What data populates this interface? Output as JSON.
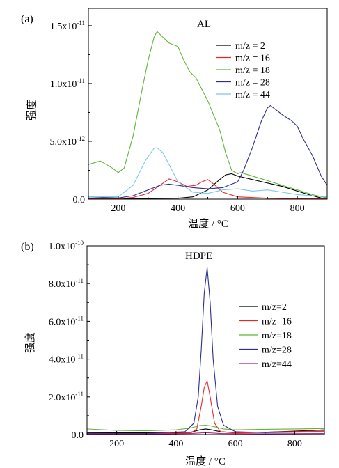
{
  "colors": {
    "black": "#000000",
    "red": "#e8262a",
    "green": "#5fb536",
    "navy": "#2b2f8f",
    "cyan": "#7cc8e8",
    "magenta": "#b0257c"
  },
  "chart_data": [
    {
      "type": "line",
      "panel_label": "(a)",
      "title": "AL",
      "xlabel": "温度 / °C",
      "ylabel": "强度",
      "xlim": [
        100,
        900
      ],
      "ylim": [
        0,
        1.65e-11
      ],
      "x_ticks": [
        200,
        400,
        600,
        800
      ],
      "x_tick_labels": [
        "200",
        "400",
        "600",
        "800"
      ],
      "y_ticks": [
        0,
        5e-12,
        1e-11,
        1.5e-11
      ],
      "y_tick_labels": [
        {
          "base": "0.0",
          "exp": ""
        },
        {
          "base": "5.0x10",
          "exp": "-12"
        },
        {
          "base": "1.0x10",
          "exp": "-11"
        },
        {
          "base": "1.5x10",
          "exp": "-11"
        }
      ],
      "legend_position": "top-right",
      "series": [
        {
          "name": "m/z = 2",
          "color_key": "black",
          "x": [
            100,
            200,
            300,
            400,
            450,
            500,
            540,
            560,
            580,
            600,
            650,
            700,
            750,
            800,
            850,
            880,
            900
          ],
          "y": [
            5e-14,
            5e-14,
            6e-14,
            8e-14,
            2e-13,
            8e-13,
            1.7e-12,
            2.1e-12,
            2.2e-12,
            2e-12,
            1.7e-12,
            1.4e-12,
            1.1e-12,
            7e-13,
            3e-13,
            1e-13,
            5e-14
          ]
        },
        {
          "name": "m/z = 16",
          "color_key": "red",
          "x": [
            100,
            200,
            250,
            300,
            340,
            370,
            400,
            430,
            460,
            480,
            500,
            520,
            550,
            600,
            700,
            800,
            900
          ],
          "y": [
            2e-14,
            3e-14,
            1.5e-13,
            5e-13,
            1.2e-12,
            1.75e-12,
            1.5e-12,
            1.1e-12,
            1.2e-12,
            1.5e-12,
            1.7e-12,
            1.3e-12,
            6e-13,
            2e-13,
            8e-14,
            5e-14,
            3e-14
          ]
        },
        {
          "name": "m/z = 18",
          "color_key": "green",
          "x": [
            100,
            140,
            180,
            200,
            220,
            250,
            280,
            300,
            310,
            320,
            330,
            350,
            370,
            400,
            420,
            440,
            460,
            500,
            540,
            560,
            580,
            600,
            610,
            650,
            700,
            750,
            800,
            850,
            900
          ],
          "y": [
            3e-12,
            3.3e-12,
            2.7e-12,
            2.3e-12,
            2.7e-12,
            5.5e-12,
            9.5e-12,
            1.2e-11,
            1.3e-11,
            1.4e-11,
            1.45e-11,
            1.4e-11,
            1.35e-11,
            1.32e-11,
            1.2e-11,
            1.1e-11,
            1.05e-11,
            8.5e-12,
            6e-12,
            4e-12,
            2.5e-12,
            2.2e-12,
            2.3e-12,
            2e-12,
            1.6e-12,
            1.2e-12,
            8e-13,
            4e-13,
            1e-13
          ]
        },
        {
          "name": "m/z = 28",
          "color_key": "navy",
          "x": [
            100,
            200,
            250,
            300,
            340,
            370,
            400,
            450,
            500,
            550,
            600,
            620,
            650,
            680,
            700,
            710,
            720,
            750,
            780,
            800,
            820,
            850,
            880,
            900
          ],
          "y": [
            2e-13,
            1e-13,
            3e-13,
            8e-13,
            1.2e-12,
            1.3e-12,
            1.2e-12,
            1e-12,
            9e-13,
            1e-12,
            1.5e-12,
            2.5e-12,
            4.5e-12,
            6.8e-12,
            7.9e-12,
            8.1e-12,
            7.9e-12,
            7.3e-12,
            6.8e-12,
            6.3e-12,
            5.2e-12,
            3.8e-12,
            2e-12,
            1.2e-12
          ]
        },
        {
          "name": "m/z = 44",
          "color_key": "cyan",
          "x": [
            100,
            200,
            250,
            290,
            320,
            330,
            350,
            380,
            400,
            450,
            500,
            550,
            600,
            650,
            700,
            750,
            800,
            850,
            900
          ],
          "y": [
            2e-13,
            2e-13,
            1.2e-12,
            3.3e-12,
            4.4e-12,
            4.45e-12,
            4e-12,
            2.5e-12,
            1.5e-12,
            6e-13,
            5e-13,
            8e-13,
            9e-13,
            7e-13,
            8e-13,
            6e-13,
            4e-13,
            3e-13,
            2e-13
          ]
        }
      ]
    },
    {
      "type": "line",
      "panel_label": "(b)",
      "title": "HDPE",
      "xlabel": "温度 / °C",
      "ylabel": "强度",
      "xlim": [
        100,
        900
      ],
      "ylim": [
        0,
        1e-10
      ],
      "x_ticks": [
        200,
        400,
        600,
        800
      ],
      "x_tick_labels": [
        "200",
        "400",
        "600",
        "800"
      ],
      "y_ticks": [
        0,
        2e-11,
        4e-11,
        6e-11,
        8e-11,
        1e-10
      ],
      "y_tick_labels": [
        {
          "base": "0.0",
          "exp": ""
        },
        {
          "base": "2.0x10",
          "exp": "-11"
        },
        {
          "base": "4.0x10",
          "exp": "-11"
        },
        {
          "base": "6.0x10",
          "exp": "-11"
        },
        {
          "base": "8.0x10",
          "exp": "-11"
        },
        {
          "base": "1.0x10",
          "exp": "-10"
        }
      ],
      "legend_position": "right",
      "series": [
        {
          "name": "m/z=2",
          "color_key": "black",
          "x": [
            100,
            300,
            450,
            480,
            500,
            520,
            550,
            600,
            700,
            800,
            900
          ],
          "y": [
            1e-12,
            9e-13,
            1.2e-12,
            2.5e-12,
            3e-12,
            2.5e-12,
            1.5e-12,
            1e-12,
            1.2e-12,
            1.8e-12,
            2.5e-12
          ]
        },
        {
          "name": "m/z=16",
          "color_key": "red",
          "x": [
            100,
            300,
            450,
            470,
            485,
            495,
            505,
            515,
            530,
            550,
            600,
            700,
            800,
            900
          ],
          "y": [
            5e-13,
            5e-13,
            8e-13,
            3e-12,
            1.5e-11,
            2.5e-11,
            2.85e-11,
            2e-11,
            6e-12,
            1.5e-12,
            8e-13,
            1.2e-12,
            1.6e-12,
            2e-12
          ]
        },
        {
          "name": "m/z=18",
          "color_key": "green",
          "x": [
            100,
            200,
            300,
            400,
            450,
            480,
            500,
            520,
            560,
            600,
            700,
            800,
            900
          ],
          "y": [
            3e-12,
            2.2e-12,
            2e-12,
            2.5e-12,
            3.5e-12,
            4.8e-12,
            5e-12,
            4.5e-12,
            3e-12,
            2.5e-12,
            2.8e-12,
            3e-12,
            3.2e-12
          ]
        },
        {
          "name": "m/z=28",
          "color_key": "navy",
          "x": [
            100,
            300,
            430,
            460,
            475,
            485,
            495,
            505,
            515,
            525,
            540,
            560,
            600,
            700,
            800,
            900
          ],
          "y": [
            5e-13,
            6e-13,
            1.5e-12,
            6e-12,
            2e-11,
            4.5e-11,
            7.5e-11,
            8.85e-11,
            7e-11,
            4e-11,
            1.5e-11,
            5e-12,
            1.5e-12,
            1e-12,
            1.2e-12,
            1.5e-12
          ]
        },
        {
          "name": "m/z=44",
          "color_key": "magenta",
          "x": [
            100,
            300,
            450,
            500,
            550,
            700,
            900
          ],
          "y": [
            3e-13,
            3e-13,
            5e-13,
            1e-12,
            5e-13,
            4e-13,
            5e-13
          ]
        }
      ]
    }
  ]
}
